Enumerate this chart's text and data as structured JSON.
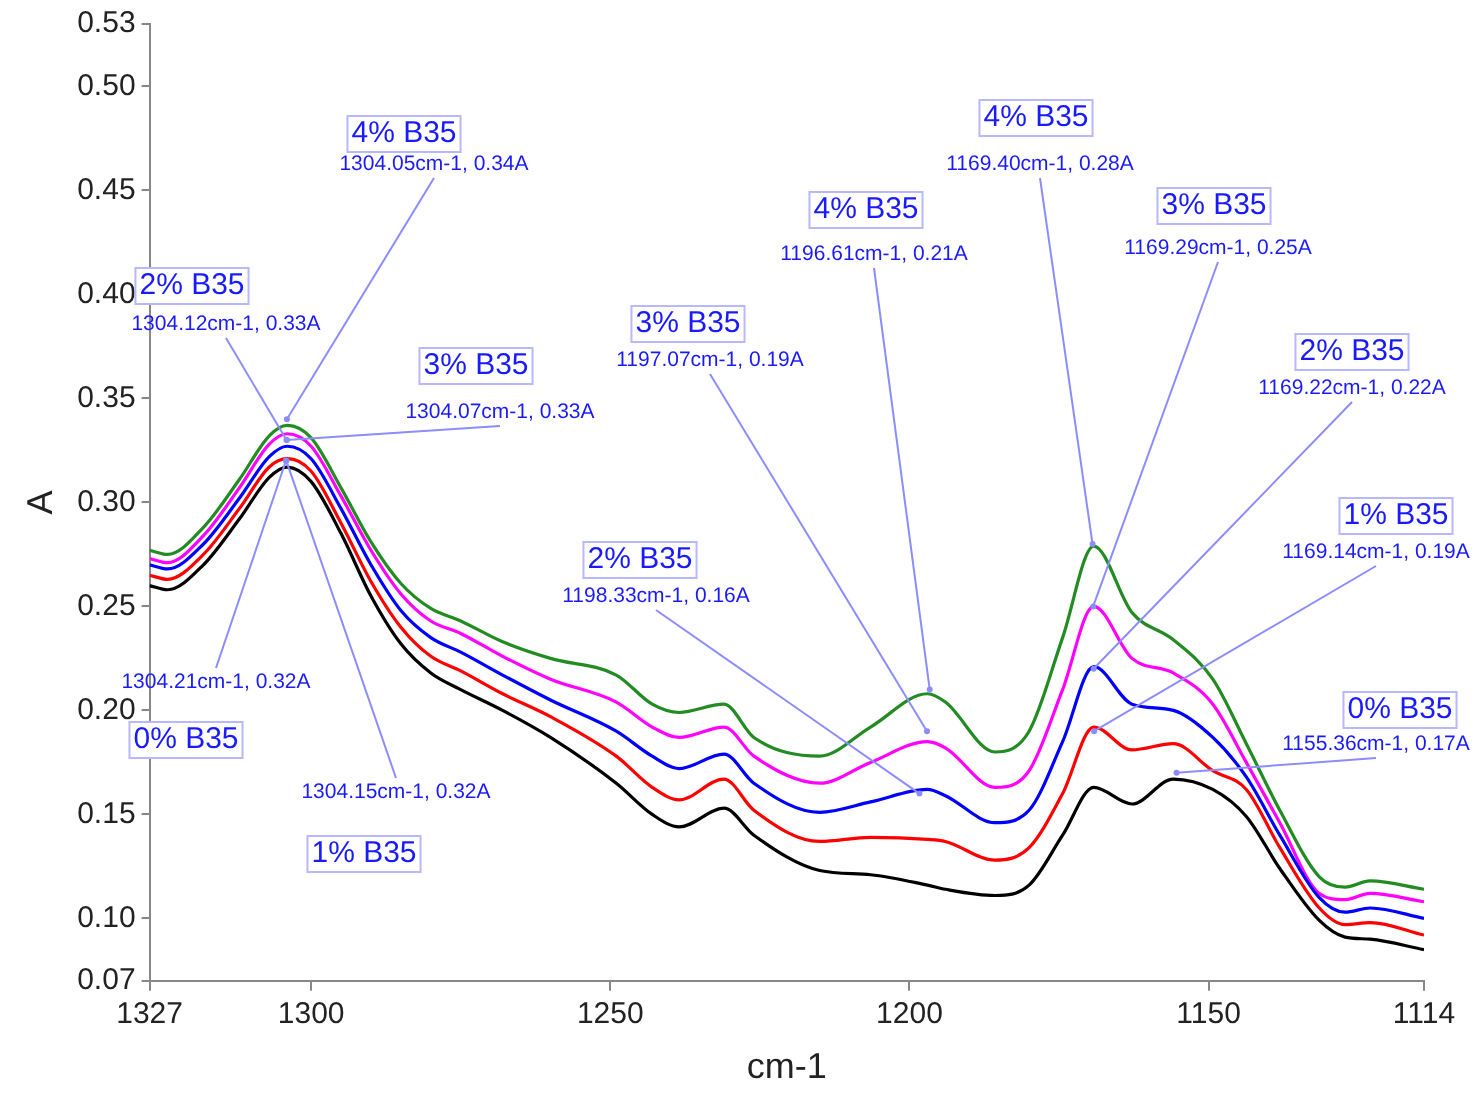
{
  "chart_data": {
    "type": "line",
    "xlabel": "cm-1",
    "ylabel": "A",
    "xlim": [
      1327,
      1114
    ],
    "ylim": [
      0.07,
      0.53
    ],
    "xticks": [
      1327,
      1300,
      1250,
      1200,
      1150,
      1114
    ],
    "yticks": [
      0.07,
      {
        "value": 0.1,
        "label": "0.10"
      },
      0.15,
      {
        "value": 0.2,
        "label": "0.20"
      },
      0.25,
      {
        "value": 0.3,
        "label": "0.30"
      },
      0.35,
      {
        "value": 0.4,
        "label": "0.40"
      },
      0.45,
      {
        "value": 0.5,
        "label": "0.50"
      },
      0.53
    ],
    "grid": false,
    "legend": false,
    "marker": "none",
    "x": [
      1327,
      1324,
      1318,
      1312,
      1307,
      1304,
      1300,
      1295,
      1290,
      1285,
      1280,
      1275,
      1268,
      1260,
      1249,
      1243,
      1238.5,
      1231,
      1226,
      1215,
      1206.5,
      1197,
      1194,
      1185.7,
      1180,
      1174.4,
      1169.2,
      1162.8,
      1155.9,
      1149.3,
      1143.7,
      1138.1,
      1131.5,
      1127.2,
      1123,
      1114
    ],
    "series": [
      {
        "color": "#000000",
        "values": [
          0.26,
          0.258,
          0.27,
          0.292,
          0.312,
          0.317,
          0.31,
          0.285,
          0.255,
          0.232,
          0.218,
          0.21,
          0.2,
          0.187,
          0.165,
          0.15,
          0.144,
          0.153,
          0.14,
          0.123,
          0.121,
          0.116,
          0.114,
          0.111,
          0.116,
          0.14,
          0.163,
          0.155,
          0.167,
          0.162,
          0.149,
          0.124,
          0.099,
          0.091,
          0.09,
          0.085
        ]
      },
      {
        "color": "#ff0000",
        "values": [
          0.265,
          0.263,
          0.275,
          0.297,
          0.317,
          0.321,
          0.315,
          0.29,
          0.262,
          0.24,
          0.226,
          0.219,
          0.208,
          0.197,
          0.178,
          0.163,
          0.157,
          0.167,
          0.152,
          0.137,
          0.139,
          0.138,
          0.137,
          0.128,
          0.134,
          0.16,
          0.192,
          0.181,
          0.184,
          0.171,
          0.162,
          0.134,
          0.105,
          0.097,
          0.098,
          0.092
        ]
      },
      {
        "color": "#0000ff",
        "values": [
          0.27,
          0.268,
          0.28,
          0.302,
          0.322,
          0.327,
          0.321,
          0.297,
          0.27,
          0.248,
          0.235,
          0.228,
          0.217,
          0.205,
          0.19,
          0.178,
          0.172,
          0.179,
          0.165,
          0.151,
          0.156,
          0.162,
          0.159,
          0.146,
          0.152,
          0.185,
          0.221,
          0.203,
          0.2,
          0.187,
          0.168,
          0.14,
          0.11,
          0.103,
          0.105,
          0.1
        ]
      },
      {
        "color": "#ff00ff",
        "values": [
          0.273,
          0.271,
          0.284,
          0.307,
          0.328,
          0.333,
          0.327,
          0.303,
          0.277,
          0.256,
          0.243,
          0.237,
          0.226,
          0.215,
          0.204,
          0.192,
          0.187,
          0.192,
          0.178,
          0.165,
          0.175,
          0.185,
          0.182,
          0.163,
          0.171,
          0.21,
          0.25,
          0.225,
          0.218,
          0.203,
          0.175,
          0.146,
          0.112,
          0.109,
          0.112,
          0.108
        ]
      },
      {
        "color": "#228b22",
        "values": [
          0.277,
          0.275,
          0.288,
          0.311,
          0.332,
          0.337,
          0.331,
          0.307,
          0.281,
          0.261,
          0.249,
          0.243,
          0.233,
          0.225,
          0.217,
          0.203,
          0.199,
          0.203,
          0.187,
          0.178,
          0.192,
          0.208,
          0.204,
          0.18,
          0.19,
          0.235,
          0.279,
          0.247,
          0.234,
          0.215,
          0.184,
          0.152,
          0.12,
          0.115,
          0.118,
          0.114
        ]
      }
    ],
    "annotations": [
      "4% B35",
      {
        "text": "1304.05cm-1, 0.34A",
        "x": 1304.05,
        "y": 0.34
      },
      "2% B35",
      {
        "text": "1304.12cm-1, 0.33A",
        "x": 1304.12,
        "y": 0.33
      },
      "3% B35",
      {
        "text": "1304.07cm-1, 0.33A",
        "x": 1304.07,
        "y": 0.33
      },
      "0% B35",
      {
        "text": "1304.21cm-1, 0.32A",
        "x": 1304.21,
        "y": 0.32
      },
      "1% B35",
      {
        "text": "1304.15cm-1, 0.32A",
        "x": 1304.15,
        "y": 0.32
      },
      "2% B35",
      {
        "text": "1198.33cm-1, 0.16A",
        "x": 1198.33,
        "y": 0.16
      },
      "3% B35",
      {
        "text": "1197.07cm-1, 0.19A",
        "x": 1197.07,
        "y": 0.19
      },
      "4% B35",
      {
        "text": "1196.61cm-1, 0.21A",
        "x": 1196.61,
        "y": 0.21
      },
      "4% B35",
      {
        "text": "1169.40cm-1, 0.28A",
        "x": 1169.4,
        "y": 0.28
      },
      "3% B35",
      {
        "text": "1169.29cm-1, 0.25A",
        "x": 1169.29,
        "y": 0.25
      },
      "2% B35",
      {
        "text": "1169.22cm-1, 0.22A",
        "x": 1169.22,
        "y": 0.22
      },
      "1% B35",
      {
        "text": "1169.14cm-1, 0.19A",
        "x": 1169.14,
        "y": 0.19
      },
      "0% B35",
      {
        "text": "1155.36cm-1, 0.17A",
        "x": 1155.36,
        "y": 0.17
      }
    ]
  }
}
